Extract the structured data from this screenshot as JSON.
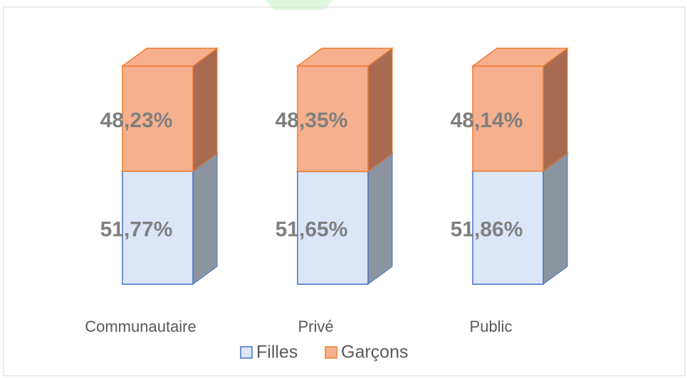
{
  "chart_data": {
    "type": "bar3d-stacked",
    "categories": [
      "Communautaire",
      "Privé",
      "Public"
    ],
    "series": [
      {
        "name": "Filles",
        "color": "#dce6f7",
        "edge": "#4472c4",
        "side": "#8a959f",
        "values": [
          51.77,
          51.65,
          51.86
        ],
        "value_labels": [
          "51,77%",
          "51,65%",
          "51,86%"
        ]
      },
      {
        "name": "Garçons",
        "color": "#f6b08e",
        "edge": "#ed7d31",
        "side": "#a86b52",
        "values": [
          48.23,
          48.35,
          48.14
        ],
        "value_labels": [
          "48,23%",
          "48,35%",
          "48,14%"
        ]
      }
    ]
  }
}
